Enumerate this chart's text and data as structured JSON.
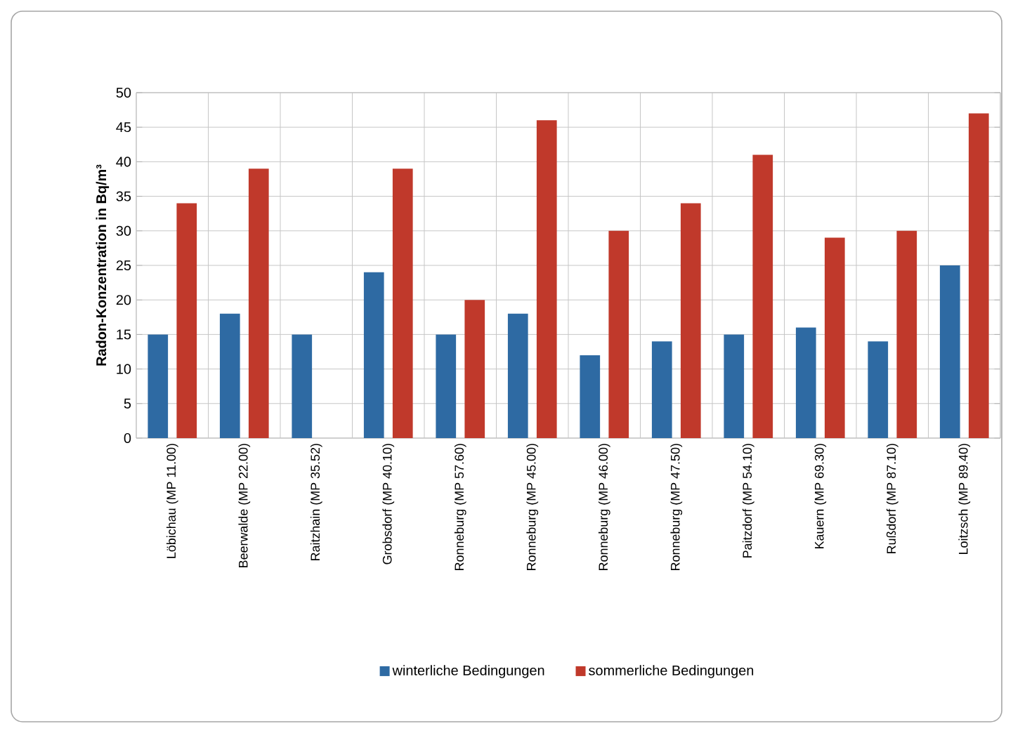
{
  "chart_data": {
    "type": "bar",
    "ylabel": "Radon-Konzentration in Bq/m³",
    "categories": [
      "Löbichau (MP 11.00)",
      "Beerwalde (MP 22.00)",
      "Raitzhain (MP 35.52)",
      "Grobsdorf (MP 40.10)",
      "Ronneburg (MP 57.60)",
      "Ronneburg (MP 45.00)",
      "Ronneburg (MP 46.00)",
      "Ronneburg (MP 47.50)",
      "Paitzdorf (MP 54.10)",
      "Kauern (MP 69.30)",
      "Rußdorf (MP 87.10)",
      "Loitzsch (MP 89.40)"
    ],
    "series": [
      {
        "name": "winterliche Bedingungen",
        "color": "#2e6aa3",
        "values": [
          15,
          18,
          15,
          24,
          15,
          18,
          12,
          14,
          15,
          16,
          14,
          25
        ]
      },
      {
        "name": "sommerliche Bedingungen",
        "color": "#c0392b",
        "values": [
          34,
          39,
          null,
          39,
          20,
          46,
          30,
          34,
          41,
          29,
          30,
          47
        ]
      }
    ],
    "ylim": [
      0,
      50
    ],
    "yticks": [
      0,
      5,
      10,
      15,
      20,
      25,
      30,
      35,
      40,
      45,
      50
    ],
    "grid": true,
    "legend": "bottom"
  }
}
